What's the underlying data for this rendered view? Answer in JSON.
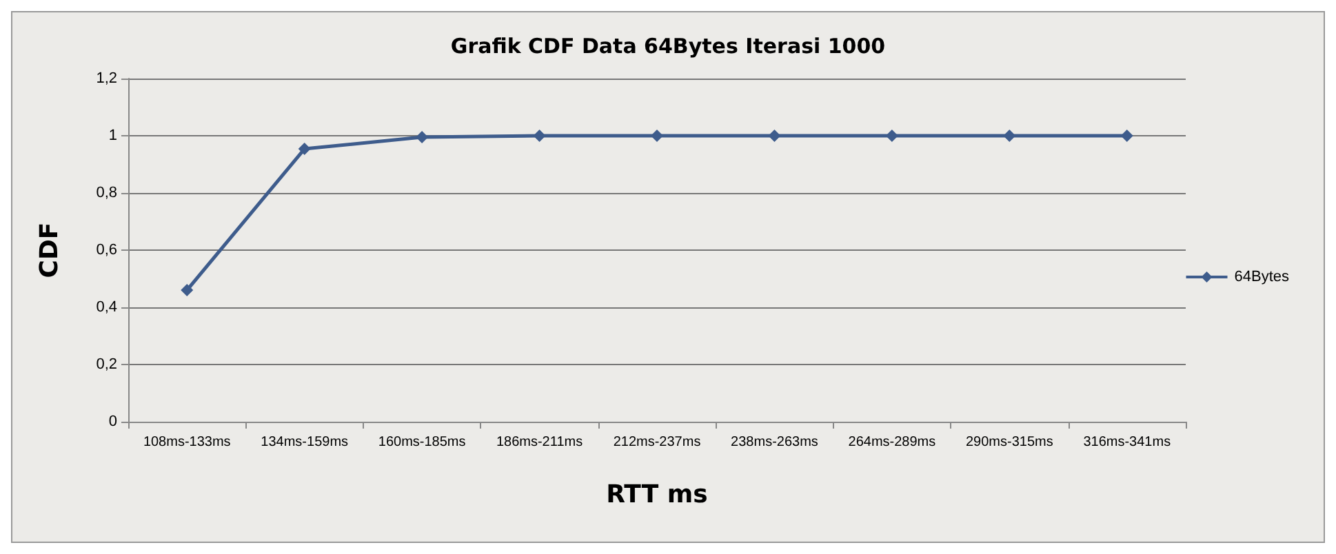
{
  "chart_data": {
    "type": "line",
    "title": "Grafik CDF Data 64Bytes Iterasi 1000",
    "xlabel": "RTT ms",
    "ylabel": "CDF",
    "categories": [
      "108ms-133ms",
      "134ms-159ms",
      "160ms-185ms",
      "186ms-211ms",
      "212ms-237ms",
      "238ms-263ms",
      "264ms-289ms",
      "290ms-315ms",
      "316ms-341ms"
    ],
    "series": [
      {
        "name": "64Bytes",
        "color": "#3e5c8c",
        "values": [
          0.46,
          0.954,
          0.995,
          1,
          1,
          1,
          1,
          1,
          1
        ]
      }
    ],
    "ylim": [
      0,
      1.2
    ],
    "yticks": [
      0,
      {
        "value": 0.2,
        "label": "0,2"
      },
      {
        "value": 0.4,
        "label": "0,4"
      },
      {
        "value": 0.6,
        "label": "0,6"
      },
      {
        "value": 0.8,
        "label": "0,8"
      },
      1,
      {
        "value": 1.2,
        "label": "1,2"
      }
    ],
    "grid": "y",
    "legend": "right",
    "marker": "diamond",
    "line_style": "solid"
  }
}
